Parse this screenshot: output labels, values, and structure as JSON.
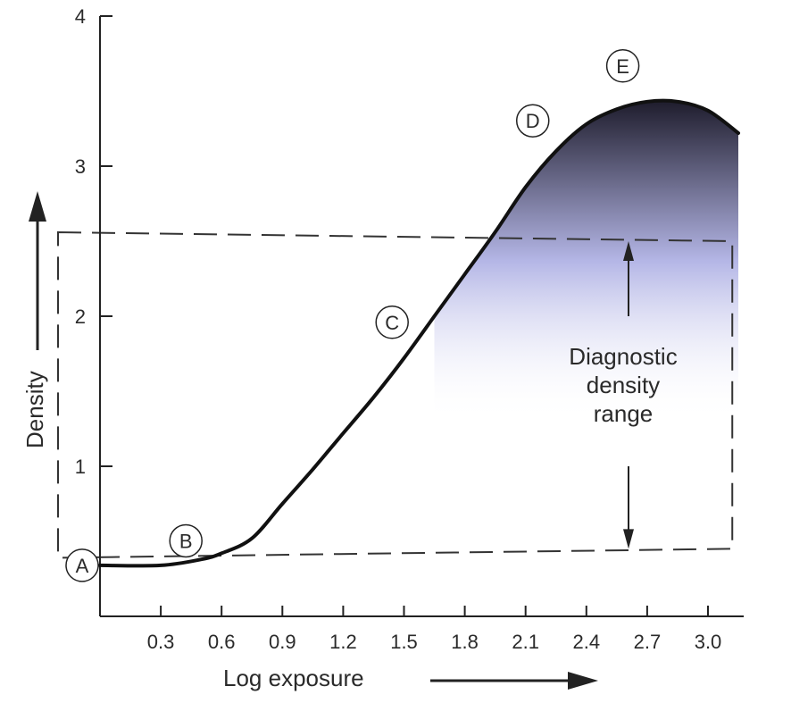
{
  "chart_data": {
    "type": "line",
    "title": "",
    "xlabel": "Log exposure",
    "ylabel": "Density",
    "xlim": [
      0,
      3.15
    ],
    "ylim": [
      0,
      4
    ],
    "x_ticks": [
      "0.3",
      "0.6",
      "0.9",
      "1.2",
      "1.5",
      "1.8",
      "2.1",
      "2.4",
      "2.7",
      "3.0"
    ],
    "y_ticks": [
      "1",
      "2",
      "3",
      "4"
    ],
    "grid": false,
    "series": [
      {
        "x": [
          0.0,
          0.3,
          0.5,
          0.6,
          0.75,
          0.9,
          1.05,
          1.2,
          1.35,
          1.5,
          1.65,
          1.8,
          1.95,
          2.1,
          2.25,
          2.4,
          2.55,
          2.7,
          2.85,
          3.0,
          3.15
        ],
        "y": [
          0.34,
          0.34,
          0.38,
          0.42,
          0.52,
          0.75,
          0.98,
          1.22,
          1.46,
          1.72,
          2.0,
          2.28,
          2.56,
          2.86,
          3.1,
          3.28,
          3.38,
          3.43,
          3.43,
          3.37,
          3.22
        ],
        "color": "#111111"
      }
    ],
    "points": [
      {
        "label": "A",
        "x": 0.0,
        "y": 0.34
      },
      {
        "label": "B",
        "x": 0.6,
        "y": 0.42
      },
      {
        "label": "C",
        "x": 1.6,
        "y": 1.9
      },
      {
        "label": "D",
        "x": 2.25,
        "y": 3.1
      },
      {
        "label": "E",
        "x": 2.8,
        "y": 3.43
      }
    ],
    "density_range": {
      "low": 0.45,
      "high": 2.5
    },
    "annotation": [
      "Diagnostic",
      "density",
      "range"
    ],
    "shading": {
      "top_color": "#1e1c2c",
      "bottom_color": "#b4b6e6"
    }
  }
}
